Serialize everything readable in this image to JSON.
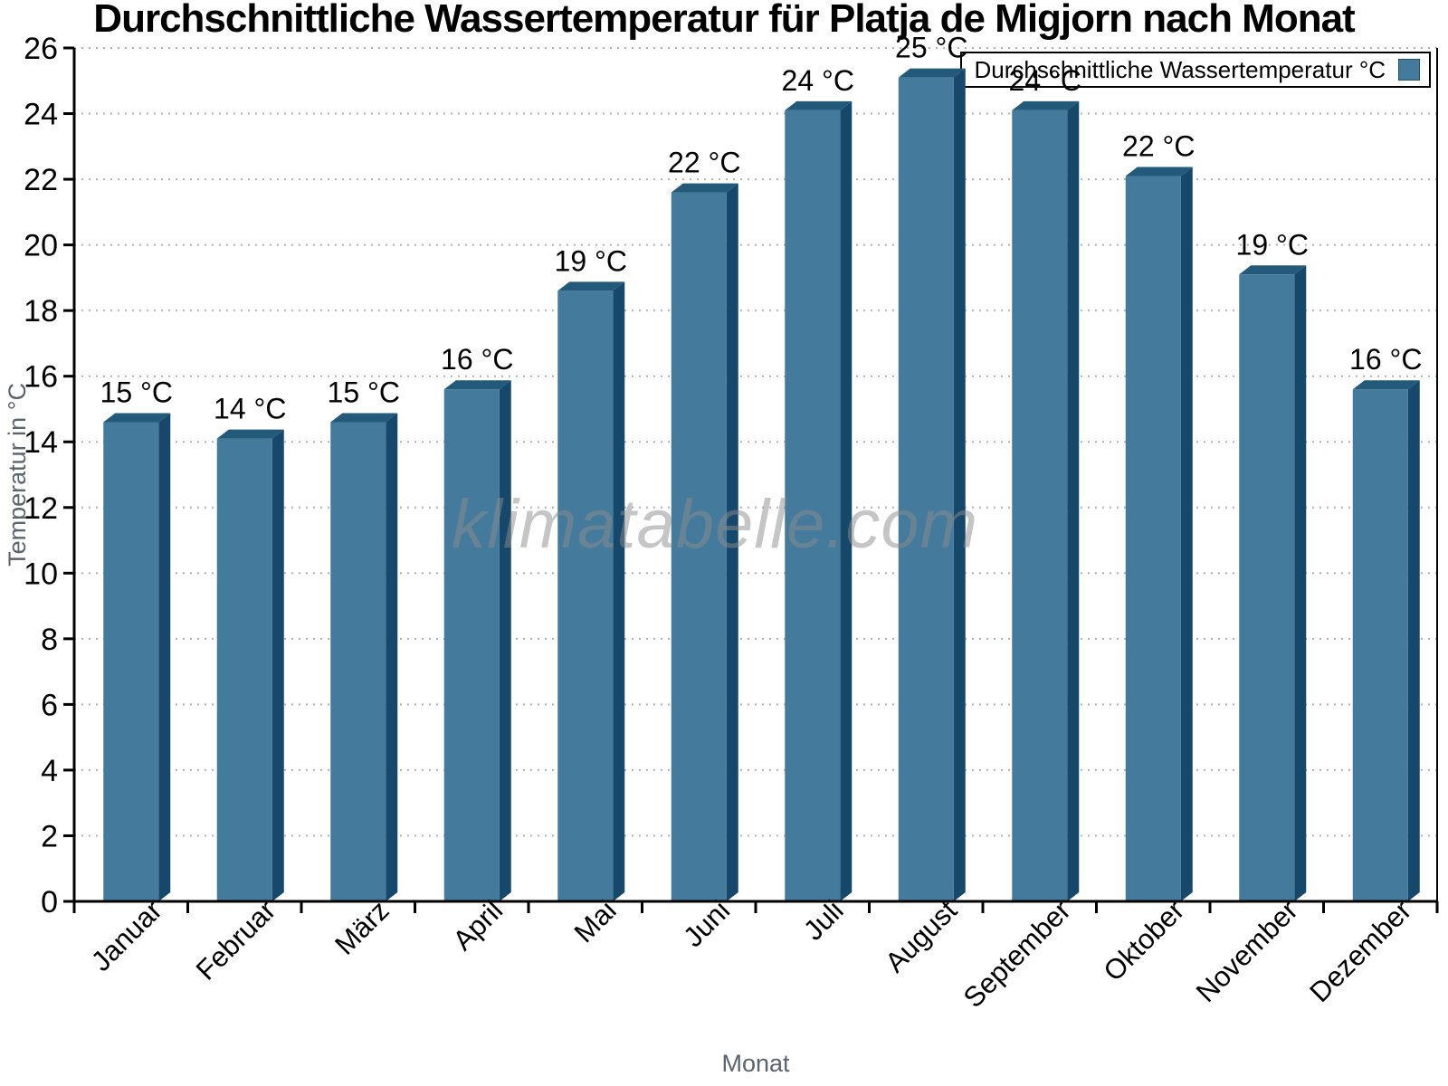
{
  "title": "Durchschnittliche Wassertemperatur für Platja de Migjorn nach Monat",
  "legend": {
    "label": "Durchschnittliche Wassertemperatur °C"
  },
  "watermark": "klimatabelle.com",
  "chart_data": {
    "type": "bar",
    "title": "Durchschnittliche Wassertemperatur für Platja de Migjorn nach Monat",
    "categories": [
      "Januar",
      "Februar",
      "März",
      "April",
      "Mai",
      "Juni",
      "Juli",
      "August",
      "September",
      "Oktober",
      "November",
      "Dezember"
    ],
    "series": [
      {
        "name": "Durchschnittliche Wassertemperatur °C",
        "values": [
          14.6,
          14.1,
          14.6,
          15.6,
          18.6,
          21.6,
          24.1,
          25.1,
          24.1,
          22.1,
          19.1,
          15.6
        ],
        "value_labels": [
          "15 °C",
          "14 °C",
          "15 °C",
          "16 °C",
          "19 °C",
          "22 °C",
          "24 °C",
          "25 °C",
          "24 °C",
          "22 °C",
          "19 °C",
          "16 °C"
        ]
      }
    ],
    "xlabel": "Monat",
    "ylabel": "Temperatur in °C",
    "ylim": [
      0,
      26
    ],
    "ytick_step": 2,
    "grid": "horizontal-dotted",
    "legend_position": "top-right",
    "bar_style": "3d"
  },
  "colors": {
    "bar_front": "#447a9c",
    "bar_top": "#235979",
    "bar_side": "#15486a",
    "grid_line": "#b3b3b3",
    "axis_line": "#000000",
    "tick_label": "#000000",
    "axis_title": "#5a646e",
    "watermark": "#8c8c8c",
    "legend_marker_border": "#1b5173"
  }
}
